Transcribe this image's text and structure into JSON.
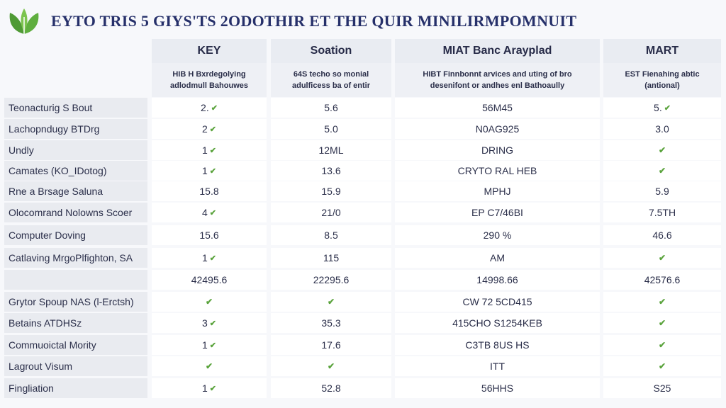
{
  "title": "EYTO TRIS 5 GIYS'TS 2ODOTHIR ET THE QUIR MINILIRMPOMNUIT",
  "brand_color": "#4f9a35",
  "check_icon": "check-icon",
  "columns": [
    {
      "header": "KEY",
      "sub1": "HIB H Bxrdegolying",
      "sub2": "adlodmull Bahouwes"
    },
    {
      "header": "Soation",
      "sub1": "64S techo so monial",
      "sub2": "adulficess ba of entir"
    },
    {
      "header": "MIAT Banc Arayplad",
      "sub1": "HIBT Finnbonnt arvices and uting of bro",
      "sub2": "desenifont or andhes enl Bathoaully"
    },
    {
      "header": "MART",
      "sub1": "EST Fienahing abtic",
      "sub2": "(antional)"
    }
  ],
  "rows": [
    {
      "label": "Teonacturig S Bout",
      "cells": [
        {
          "t": "2.",
          "c": true
        },
        {
          "t": "5.6",
          "c": false
        },
        {
          "t": "56M45",
          "c": false
        },
        {
          "t": "5.",
          "c": true
        }
      ]
    },
    {
      "label": "Lachopndugy BTDrg",
      "cells": [
        {
          "t": "2",
          "c": true
        },
        {
          "t": "5.0",
          "c": false
        },
        {
          "t": "N0AG925",
          "c": false
        },
        {
          "t": "3.0",
          "c": false
        }
      ]
    },
    {
      "label": "Undly",
      "cells": [
        {
          "t": "1",
          "c": true
        },
        {
          "t": "12ML",
          "c": false
        },
        {
          "t": "DRING",
          "c": false
        },
        {
          "t": "",
          "c": true
        }
      ]
    },
    {
      "label": "Camates (KO_IDotog)",
      "cells": [
        {
          "t": "1",
          "c": true
        },
        {
          "t": "13.6",
          "c": false
        },
        {
          "t": "CRYTO RAL HEB",
          "c": false
        },
        {
          "t": "",
          "c": true
        }
      ]
    },
    {
      "label": "Rne a Brsage Saluna",
      "cells": [
        {
          "t": "15.8",
          "c": false
        },
        {
          "t": "15.9",
          "c": false
        },
        {
          "t": "MPHJ",
          "c": false
        },
        {
          "t": "5.9",
          "c": false
        }
      ]
    },
    {
      "label": "Olocomrand Nolowns Scoer",
      "cells": [
        {
          "t": "4",
          "c": true
        },
        {
          "t": "21/0",
          "c": false
        },
        {
          "t": "EP C7/46BI",
          "c": false
        },
        {
          "t": "7.5TH",
          "c": false
        }
      ]
    },
    {
      "label": "Computer Doving",
      "cells": [
        {
          "t": "15.6",
          "c": false
        },
        {
          "t": "8.5",
          "c": false
        },
        {
          "t": "290 %",
          "c": false
        },
        {
          "t": "46.6",
          "c": false
        }
      ]
    },
    {
      "label": "Catlaving MrgoPlfighton, SA",
      "cells": [
        {
          "t": "1",
          "c": true
        },
        {
          "t": "115",
          "c": false
        },
        {
          "t": "AM",
          "c": false
        },
        {
          "t": "",
          "c": true
        }
      ]
    },
    {
      "label": "",
      "cells": [
        {
          "t": "42495.6",
          "c": false
        },
        {
          "t": "22295.6",
          "c": false
        },
        {
          "t": "14998.66",
          "c": false
        },
        {
          "t": "42576.6",
          "c": false
        }
      ]
    },
    {
      "label": "Grytor Spoup NAS (l-Erctsh)",
      "cells": [
        {
          "t": "",
          "c": true
        },
        {
          "t": "",
          "c": true
        },
        {
          "t": "CW 72 5CD415",
          "c": false
        },
        {
          "t": "",
          "c": true
        }
      ]
    },
    {
      "label": "Betains ATDHSz",
      "cells": [
        {
          "t": "3",
          "c": true
        },
        {
          "t": "35.3",
          "c": false
        },
        {
          "t": "415CHO S1254KEB",
          "c": false
        },
        {
          "t": "",
          "c": true
        }
      ]
    },
    {
      "label": "Commuoictal Mority",
      "cells": [
        {
          "t": "1",
          "c": true
        },
        {
          "t": "17.6",
          "c": false
        },
        {
          "t": "C3TB 8US HS",
          "c": false
        },
        {
          "t": "",
          "c": true
        }
      ]
    },
    {
      "label": "Lagrout Visum",
      "cells": [
        {
          "t": "",
          "c": true
        },
        {
          "t": "",
          "c": true
        },
        {
          "t": "ITT",
          "c": false
        },
        {
          "t": "",
          "c": true
        }
      ]
    },
    {
      "label": "Fingliation",
      "cells": [
        {
          "t": "1",
          "c": true
        },
        {
          "t": "52.8",
          "c": false
        },
        {
          "t": "56HHS",
          "c": false
        },
        {
          "t": "S25",
          "c": false
        }
      ]
    }
  ]
}
